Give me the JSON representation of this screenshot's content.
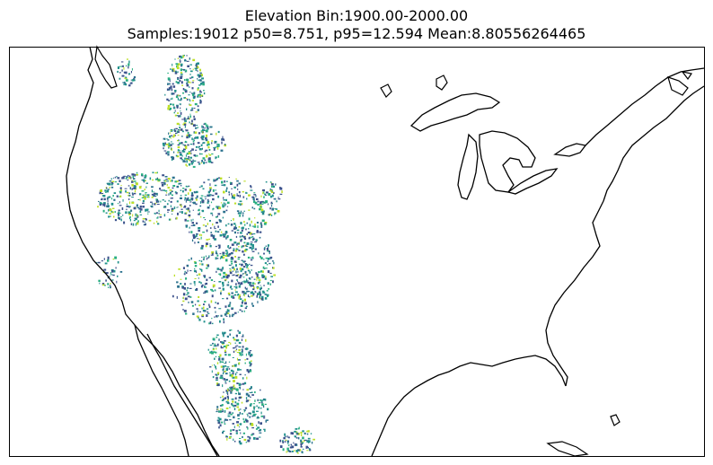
{
  "title": {
    "line1": "Elevation Bin:1900.00-2000.00",
    "line2": "Samples:19012 p50=8.751, p95=12.594 Mean:8.80556264465"
  },
  "map": {
    "projection": "conic",
    "region": "conterminous United States with southern Canada and northern Mexico",
    "features": [
      "coastlines",
      "great-lakes",
      "elevation-band-samples"
    ],
    "frame": "black rectangle border",
    "colormap": "viridis",
    "colors": {
      "outline": "#000000",
      "background": "#ffffff",
      "viridis_low": "#3b518b",
      "viridis_mid": "#21918c",
      "viridis_high": "#bddf26"
    }
  }
}
